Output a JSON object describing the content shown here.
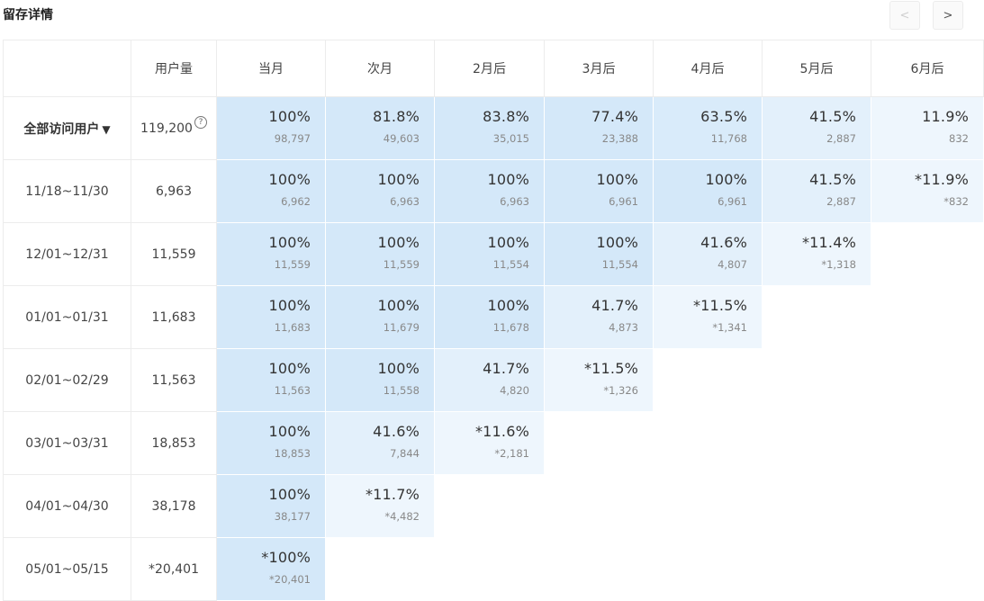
{
  "title": "留存详情",
  "nav": {
    "prev": "<",
    "next": ">"
  },
  "columns": [
    "用户量",
    "当月",
    "次月",
    "2月后",
    "3月后",
    "4月后",
    "5月后",
    "6月后"
  ],
  "rows": [
    {
      "label": "全部访问用户",
      "caret": "▼",
      "users": "119,200",
      "help": "?",
      "all": true,
      "cells": [
        {
          "pct": "100%",
          "count": "98,797",
          "shade": 3
        },
        {
          "pct": "81.8%",
          "count": "49,603",
          "shade": 3
        },
        {
          "pct": "83.8%",
          "count": "35,015",
          "shade": 3
        },
        {
          "pct": "77.4%",
          "count": "23,388",
          "shade": 3
        },
        {
          "pct": "63.5%",
          "count": "11,768",
          "shade": 2
        },
        {
          "pct": "41.5%",
          "count": "2,887",
          "shade": 1
        },
        {
          "pct": "11.9%",
          "count": "832",
          "shade": 0
        }
      ]
    },
    {
      "label": "11/18~11/30",
      "users": "6,963",
      "cells": [
        {
          "pct": "100%",
          "count": "6,962",
          "shade": 3
        },
        {
          "pct": "100%",
          "count": "6,963",
          "shade": 3
        },
        {
          "pct": "100%",
          "count": "6,963",
          "shade": 3
        },
        {
          "pct": "100%",
          "count": "6,961",
          "shade": 3
        },
        {
          "pct": "100%",
          "count": "6,961",
          "shade": 3
        },
        {
          "pct": "41.5%",
          "count": "2,887",
          "shade": 1
        },
        {
          "pct": "*11.9%",
          "count": "*832",
          "shade": 0
        }
      ]
    },
    {
      "label": "12/01~12/31",
      "users": "11,559",
      "cells": [
        {
          "pct": "100%",
          "count": "11,559",
          "shade": 3
        },
        {
          "pct": "100%",
          "count": "11,559",
          "shade": 3
        },
        {
          "pct": "100%",
          "count": "11,554",
          "shade": 3
        },
        {
          "pct": "100%",
          "count": "11,554",
          "shade": 3
        },
        {
          "pct": "41.6%",
          "count": "4,807",
          "shade": 1
        },
        {
          "pct": "*11.4%",
          "count": "*1,318",
          "shade": 0
        }
      ]
    },
    {
      "label": "01/01~01/31",
      "users": "11,683",
      "cells": [
        {
          "pct": "100%",
          "count": "11,683",
          "shade": 3
        },
        {
          "pct": "100%",
          "count": "11,679",
          "shade": 3
        },
        {
          "pct": "100%",
          "count": "11,678",
          "shade": 3
        },
        {
          "pct": "41.7%",
          "count": "4,873",
          "shade": 1
        },
        {
          "pct": "*11.5%",
          "count": "*1,341",
          "shade": 0
        }
      ]
    },
    {
      "label": "02/01~02/29",
      "users": "11,563",
      "cells": [
        {
          "pct": "100%",
          "count": "11,563",
          "shade": 3
        },
        {
          "pct": "100%",
          "count": "11,558",
          "shade": 3
        },
        {
          "pct": "41.7%",
          "count": "4,820",
          "shade": 1
        },
        {
          "pct": "*11.5%",
          "count": "*1,326",
          "shade": 0
        }
      ]
    },
    {
      "label": "03/01~03/31",
      "users": "18,853",
      "cells": [
        {
          "pct": "100%",
          "count": "18,853",
          "shade": 3
        },
        {
          "pct": "41.6%",
          "count": "7,844",
          "shade": 1
        },
        {
          "pct": "*11.6%",
          "count": "*2,181",
          "shade": 0
        }
      ]
    },
    {
      "label": "04/01~04/30",
      "users": "38,178",
      "cells": [
        {
          "pct": "100%",
          "count": "38,177",
          "shade": 3
        },
        {
          "pct": "*11.7%",
          "count": "*4,482",
          "shade": 0
        }
      ]
    },
    {
      "label": "05/01~05/15",
      "users": "*20,401",
      "cells": [
        {
          "pct": "*100%",
          "count": "*20,401",
          "shade": 3
        }
      ]
    }
  ],
  "shades": [
    "#eef6fd",
    "#e3f0fb",
    "#d9ebfa",
    "#d4e8f9"
  ]
}
